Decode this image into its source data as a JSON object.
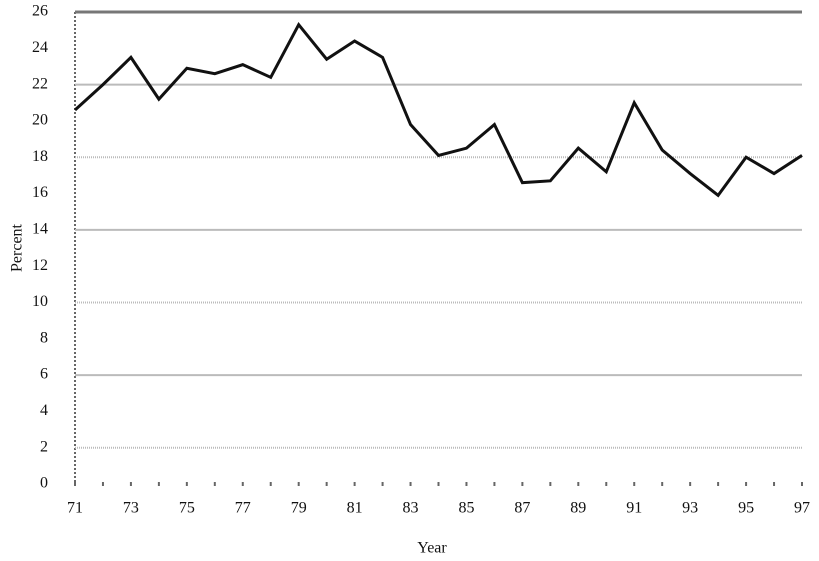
{
  "chart_data": {
    "type": "line",
    "x_label": "Year",
    "y_label": "Percent",
    "x": [
      71,
      72,
      73,
      74,
      75,
      76,
      77,
      78,
      79,
      80,
      81,
      82,
      83,
      84,
      85,
      86,
      87,
      88,
      89,
      90,
      91,
      92,
      93,
      94,
      95,
      96,
      97
    ],
    "series": [
      {
        "color": "#111111",
        "values": [
          20.6,
          22.0,
          23.5,
          21.2,
          22.9,
          22.6,
          23.1,
          22.4,
          25.3,
          23.4,
          24.4,
          23.5,
          19.8,
          18.1,
          18.5,
          19.8,
          16.6,
          16.7,
          18.5,
          17.2,
          21.0,
          18.4,
          17.1,
          15.9,
          18.0,
          17.1,
          18.1
        ]
      }
    ],
    "xlim": [
      71,
      97
    ],
    "xticks": [
      71,
      73,
      75,
      77,
      79,
      81,
      83,
      85,
      87,
      89,
      91,
      93,
      95,
      97
    ],
    "ylim": [
      0,
      26
    ],
    "yticks": [
      0,
      2,
      4,
      6,
      8,
      10,
      12,
      14,
      16,
      18,
      20,
      22,
      24,
      26
    ],
    "grid": true
  }
}
